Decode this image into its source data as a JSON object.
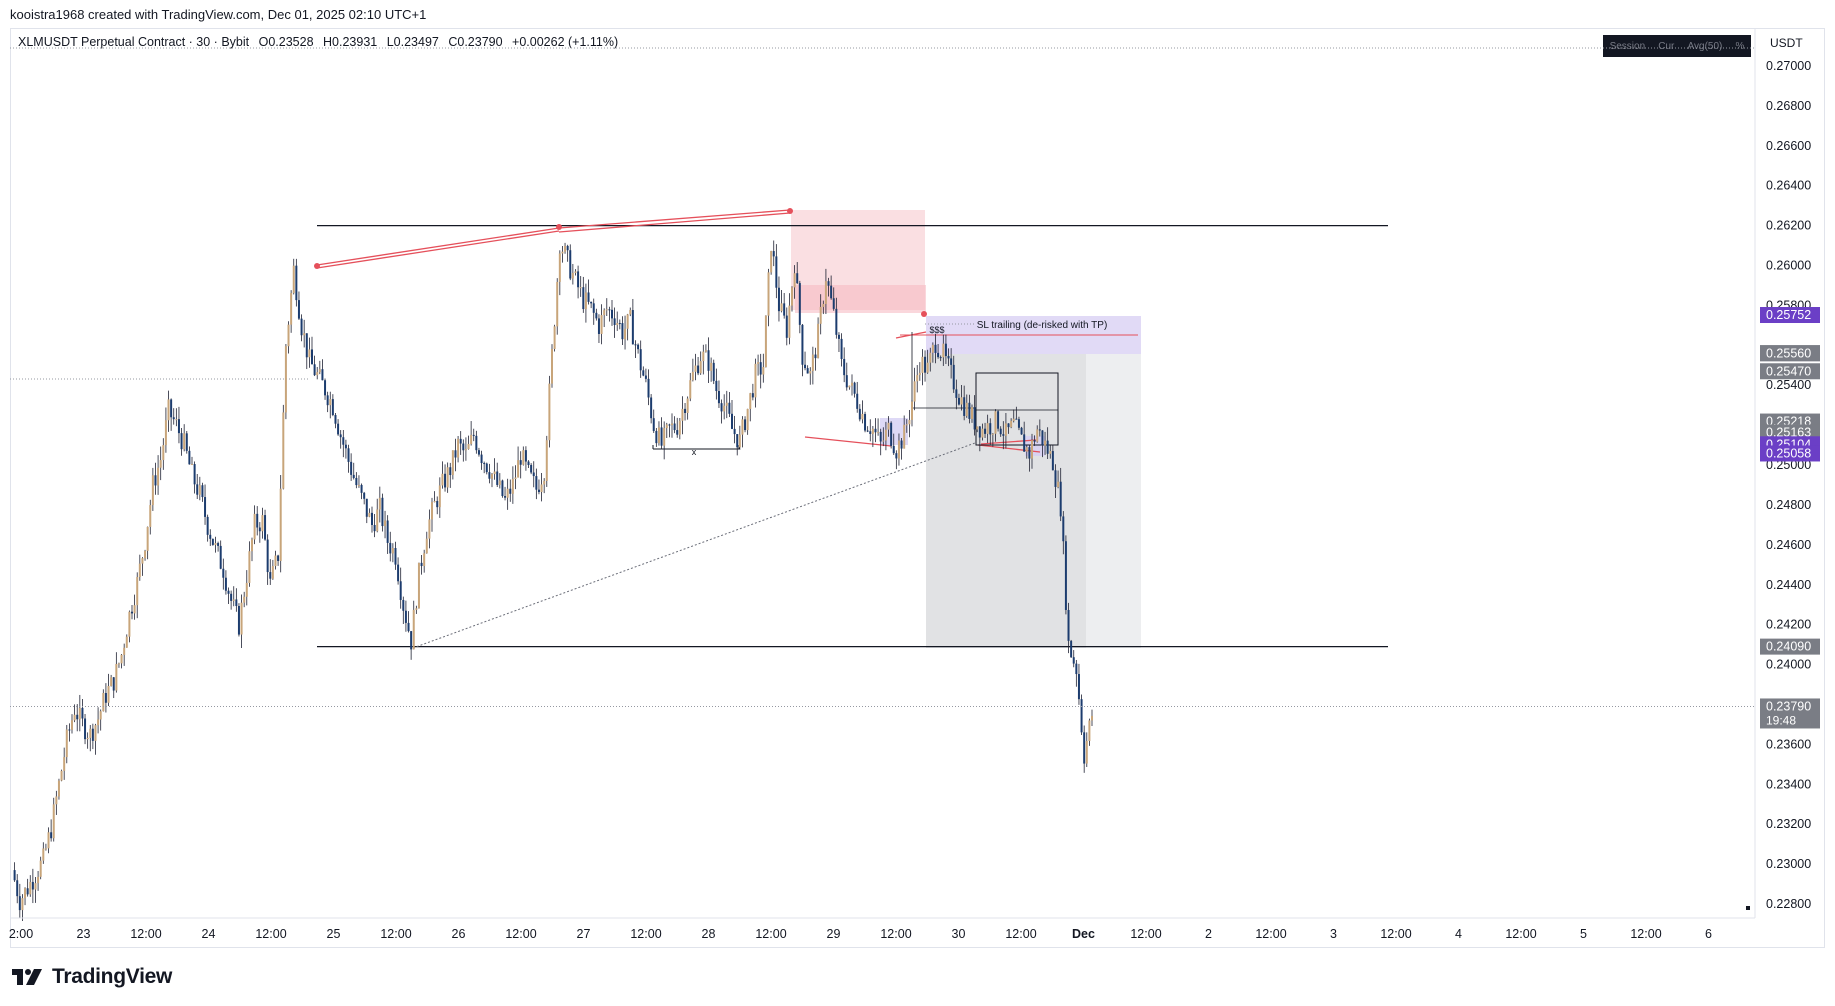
{
  "header": {
    "caption": "kooistra1968 created with TradingView.com, Dec 01, 2025 02:10 UTC+1"
  },
  "legend": {
    "symbol": "XLMUSDT Perpetual Contract · 30 · Bybit",
    "open": "O0.23528",
    "high": "H0.23931",
    "low": "L0.23497",
    "close": "C0.23790",
    "change": "+0.00262 (+1.11%)"
  },
  "toolbar": {
    "session": "Session",
    "cur": "Cur",
    "avg": "Avg(50)",
    "pct": "%"
  },
  "currency_label": "USDT",
  "brand": {
    "name": "TradingView",
    "icon": "tradingview-logo-icon"
  },
  "colors": {
    "up": "#c8a57a",
    "down": "#1c3c6e",
    "wick": "#1f2233",
    "red_line": "#e5505b",
    "red_zone": "#f8d2d6",
    "purple_label": "#6b3fc6",
    "gray_label": "#7a7d85"
  },
  "chart_data": {
    "type": "candlestick",
    "timeframe": "30",
    "y_axis": {
      "ylim": [
        0.227,
        0.272
      ],
      "ticks": [
        "0.27000",
        "0.26800",
        "0.26600",
        "0.26400",
        "0.26200",
        "0.26000",
        "0.25800",
        "0.25400",
        "0.25000",
        "0.24800",
        "0.24600",
        "0.24400",
        "0.24200",
        "0.24000",
        "0.23600",
        "0.23400",
        "0.23200",
        "0.23000",
        "0.22800"
      ]
    },
    "x_axis": {
      "ticks": [
        "2:00",
        "23",
        "12:00",
        "24",
        "12:00",
        "25",
        "12:00",
        "26",
        "12:00",
        "27",
        "12:00",
        "28",
        "12:00",
        "29",
        "12:00",
        "30",
        "12:00",
        "Dec",
        "12:00",
        "2",
        "12:00",
        "3",
        "12:00",
        "4",
        "12:00",
        "5",
        "12:00",
        "6"
      ],
      "bold": [
        "Dec"
      ]
    },
    "price_labels": [
      {
        "value": "0.25752",
        "color": "#6b3fc6"
      },
      {
        "value": "0.25561",
        "color": "#7a7d85"
      },
      {
        "value": "0.25560",
        "color": "#7a7d85"
      },
      {
        "value": "0.25470",
        "color": "#7a7d85"
      },
      {
        "value": "0.25218",
        "color": "#7a7d85"
      },
      {
        "value": "0.25163",
        "color": "#7a7d85"
      },
      {
        "value": "0.25104",
        "color": "#6b3fc6"
      },
      {
        "value": "0.25058",
        "color": "#6b3fc6"
      },
      {
        "value": "0.24090",
        "color": "#7a7d85"
      }
    ],
    "last_price": {
      "value": "0.23790",
      "countdown": "19:48"
    },
    "levels": [
      0.262,
      0.2409
    ],
    "annotations": {
      "zone_label": "SL trailing (de-risked with TP)",
      "marker_x": "x",
      "marker_sss": "$$$"
    },
    "price_path": [
      [
        0,
        0.2297
      ],
      [
        1,
        0.2282
      ],
      [
        2,
        0.2288
      ],
      [
        3,
        0.2295
      ],
      [
        4,
        0.2302
      ],
      [
        5,
        0.2318
      ],
      [
        6,
        0.234
      ],
      [
        7,
        0.2362
      ],
      [
        8,
        0.2378
      ],
      [
        9,
        0.237
      ],
      [
        10,
        0.2365
      ],
      [
        11,
        0.2373
      ],
      [
        12,
        0.2385
      ],
      [
        13,
        0.2392
      ],
      [
        14,
        0.2405
      ],
      [
        15,
        0.2425
      ],
      [
        16,
        0.2441
      ],
      [
        17,
        0.2462
      ],
      [
        18,
        0.249
      ],
      [
        19,
        0.2503
      ],
      [
        20,
        0.2527
      ],
      [
        21,
        0.252
      ],
      [
        22,
        0.251
      ],
      [
        23,
        0.2495
      ],
      [
        24,
        0.2485
      ],
      [
        25,
        0.247
      ],
      [
        26,
        0.2458
      ],
      [
        27,
        0.2448
      ],
      [
        28,
        0.2432
      ],
      [
        29,
        0.242
      ],
      [
        30,
        0.2445
      ],
      [
        31,
        0.247
      ],
      [
        32,
        0.2472
      ],
      [
        33,
        0.244
      ],
      [
        34,
        0.2455
      ],
      [
        35,
        0.256
      ],
      [
        36,
        0.2598
      ],
      [
        37,
        0.257
      ],
      [
        38,
        0.2552
      ],
      [
        39,
        0.2545
      ],
      [
        40,
        0.2538
      ],
      [
        41,
        0.253
      ],
      [
        42,
        0.2515
      ],
      [
        43,
        0.2502
      ],
      [
        44,
        0.249
      ],
      [
        45,
        0.248
      ],
      [
        46,
        0.247
      ],
      [
        47,
        0.2478
      ],
      [
        48,
        0.2462
      ],
      [
        49,
        0.2455
      ],
      [
        50,
        0.243
      ],
      [
        51,
        0.2412
      ],
      [
        52,
        0.2445
      ],
      [
        53,
        0.2468
      ],
      [
        54,
        0.248
      ],
      [
        55,
        0.249
      ],
      [
        56,
        0.2498
      ],
      [
        57,
        0.251
      ],
      [
        58,
        0.2505
      ],
      [
        59,
        0.2515
      ],
      [
        60,
        0.2505
      ],
      [
        61,
        0.2498
      ],
      [
        62,
        0.249
      ],
      [
        63,
        0.2482
      ],
      [
        64,
        0.249
      ],
      [
        65,
        0.2505
      ],
      [
        66,
        0.2495
      ],
      [
        67,
        0.2488
      ],
      [
        68,
        0.2498
      ],
      [
        69,
        0.2555
      ],
      [
        70,
        0.2612
      ],
      [
        71,
        0.2602
      ],
      [
        72,
        0.2592
      ],
      [
        73,
        0.2583
      ],
      [
        74,
        0.2578
      ],
      [
        75,
        0.257
      ],
      [
        76,
        0.2578
      ],
      [
        77,
        0.2575
      ],
      [
        78,
        0.2567
      ],
      [
        79,
        0.2572
      ],
      [
        80,
        0.2555
      ],
      [
        81,
        0.254
      ],
      [
        82,
        0.252
      ],
      [
        83,
        0.251
      ],
      [
        84,
        0.2518
      ],
      [
        85,
        0.252
      ],
      [
        86,
        0.2532
      ],
      [
        87,
        0.2545
      ],
      [
        88,
        0.2555
      ],
      [
        89,
        0.2552
      ],
      [
        90,
        0.2538
      ],
      [
        91,
        0.253
      ],
      [
        92,
        0.2518
      ],
      [
        93,
        0.2512
      ],
      [
        94,
        0.2528
      ],
      [
        95,
        0.2545
      ],
      [
        96,
        0.255
      ],
      [
        97,
        0.2612
      ],
      [
        98,
        0.258
      ],
      [
        99,
        0.2568
      ],
      [
        100,
        0.2602
      ],
      [
        101,
        0.2555
      ],
      [
        102,
        0.2545
      ],
      [
        103,
        0.2565
      ],
      [
        104,
        0.2595
      ],
      [
        105,
        0.2575
      ],
      [
        106,
        0.255
      ],
      [
        107,
        0.254
      ],
      [
        108,
        0.2532
      ],
      [
        109,
        0.2522
      ],
      [
        110,
        0.2518
      ],
      [
        111,
        0.251
      ],
      [
        112,
        0.2518
      ],
      [
        113,
        0.2508
      ],
      [
        114,
        0.2515
      ],
      [
        115,
        0.2532
      ],
      [
        116,
        0.2552
      ],
      [
        117,
        0.2548
      ],
      [
        118,
        0.2562
      ],
      [
        119,
        0.2555
      ],
      [
        120,
        0.2545
      ],
      [
        121,
        0.2535
      ],
      [
        122,
        0.2528
      ],
      [
        123,
        0.2522
      ],
      [
        124,
        0.2518
      ],
      [
        125,
        0.252
      ],
      [
        126,
        0.2522
      ],
      [
        127,
        0.2515
      ],
      [
        128,
        0.252
      ],
      [
        129,
        0.2512
      ],
      [
        130,
        0.2506
      ],
      [
        131,
        0.2518
      ],
      [
        132,
        0.251
      ],
      [
        133,
        0.2502
      ],
      [
        134,
        0.248
      ],
      [
        135,
        0.241
      ],
      [
        136,
        0.2398
      ],
      [
        137,
        0.2355
      ],
      [
        138,
        0.2375
      ]
    ],
    "path_start_day": "Nov 22 22:00",
    "path_end_day": "Dec 01 02:00"
  }
}
